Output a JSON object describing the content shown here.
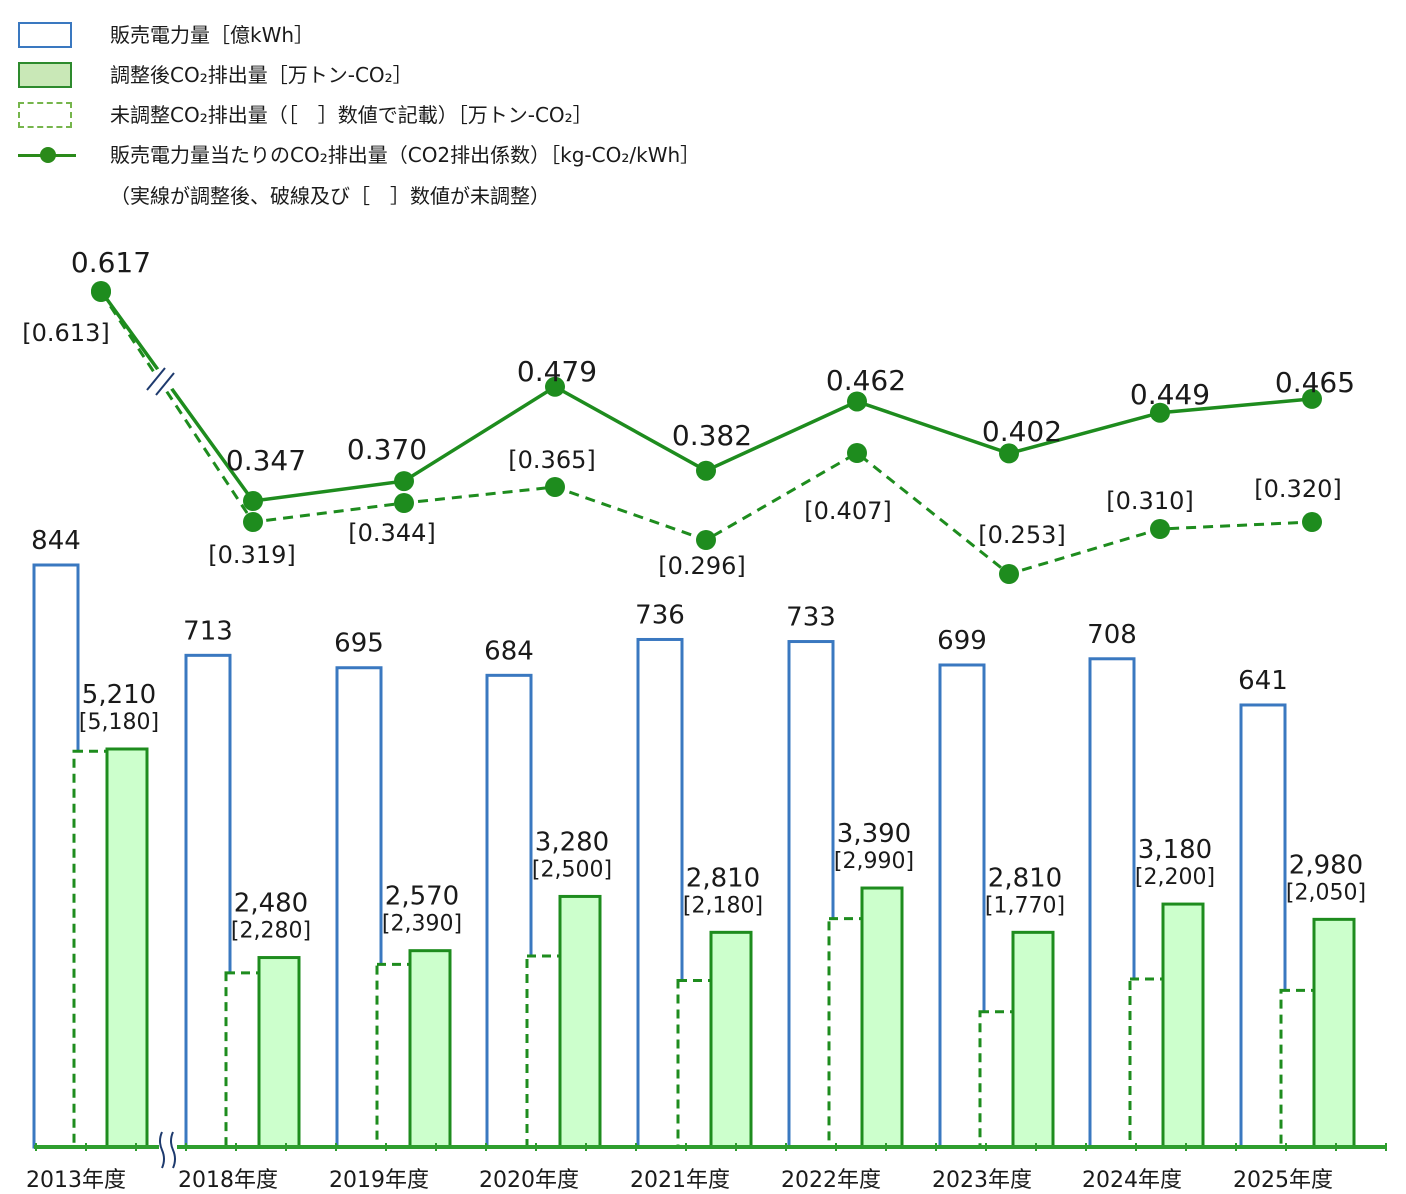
{
  "legend": {
    "items": [
      {
        "label": "販売電力量［億kWh］",
        "swatch": "blue-outline"
      },
      {
        "label": "調整後CO₂排出量［万トン-CO₂］",
        "swatch": "green-fill"
      },
      {
        "label": "未調整CO₂排出量（［　］数値で記載）［万トン-CO₂］",
        "swatch": "green-dashed"
      },
      {
        "label": "販売電力量当たりのCO₂排出量（CO2排出係数）［kg-CO₂/kWh］",
        "swatch": "green-line-marker"
      }
    ],
    "note": "（実線が調整後、破線及び［　］数値が未調整）"
  },
  "colors": {
    "sales": "#3a78c0",
    "adjusted_fill": "#ccffcc",
    "adjusted_stroke": "#1e8c1e",
    "line": "#1e8c1e",
    "axis": "#2e9e2e"
  },
  "chart_data": {
    "type": "bar",
    "categories": [
      "2013年度",
      "2018年度",
      "2019年度",
      "2020年度",
      "2021年度",
      "2022年度",
      "2023年度",
      "2024年度",
      "2025年度"
    ],
    "series": [
      {
        "name": "販売電力量［億kWh］",
        "type": "bar",
        "values": [
          844,
          713,
          695,
          684,
          736,
          733,
          699,
          708,
          641
        ],
        "labels": [
          "844",
          "713",
          "695",
          "684",
          "736",
          "733",
          "699",
          "708",
          "641"
        ]
      },
      {
        "name": "調整後CO₂排出量［万トン-CO₂］",
        "type": "bar",
        "values": [
          5210,
          2480,
          2570,
          3280,
          2810,
          3390,
          2810,
          3180,
          2980
        ],
        "labels": [
          "5,210",
          "2,480",
          "2,570",
          "3,280",
          "2,810",
          "3,390",
          "2,810",
          "3,180",
          "2,980"
        ]
      },
      {
        "name": "未調整CO₂排出量［万トン-CO₂］",
        "type": "bar-dashed",
        "values": [
          5180,
          2280,
          2390,
          2500,
          2180,
          2990,
          1770,
          2200,
          2050
        ],
        "labels": [
          "[5,180]",
          "[2,280]",
          "[2,390]",
          "[2,500]",
          "[2,180]",
          "[2,990]",
          "[1,770]",
          "[2,200]",
          "[2,050]"
        ]
      },
      {
        "name": "CO₂排出係数（調整後）［kg-CO₂/kWh］",
        "type": "line",
        "values": [
          0.617,
          0.347,
          0.37,
          0.479,
          0.382,
          0.462,
          0.402,
          0.449,
          0.465
        ],
        "labels": [
          "0.617",
          "0.347",
          "0.370",
          "0.479",
          "0.382",
          "0.462",
          "0.402",
          "0.449",
          "0.465"
        ]
      },
      {
        "name": "CO₂排出係数（未調整）［kg-CO₂/kWh］",
        "type": "line-dashed",
        "values": [
          0.613,
          0.319,
          0.344,
          0.365,
          0.296,
          0.407,
          0.253,
          0.31,
          0.32
        ],
        "labels": [
          "[0.613]",
          "[0.319]",
          "[0.344]",
          "[0.365]",
          "[0.296]",
          "[0.407]",
          "[0.253]",
          "[0.310]",
          "[0.320]"
        ]
      }
    ],
    "axis_break": "between 2013年度 and 2018年度",
    "grid": false,
    "legend_position": "top-left"
  }
}
